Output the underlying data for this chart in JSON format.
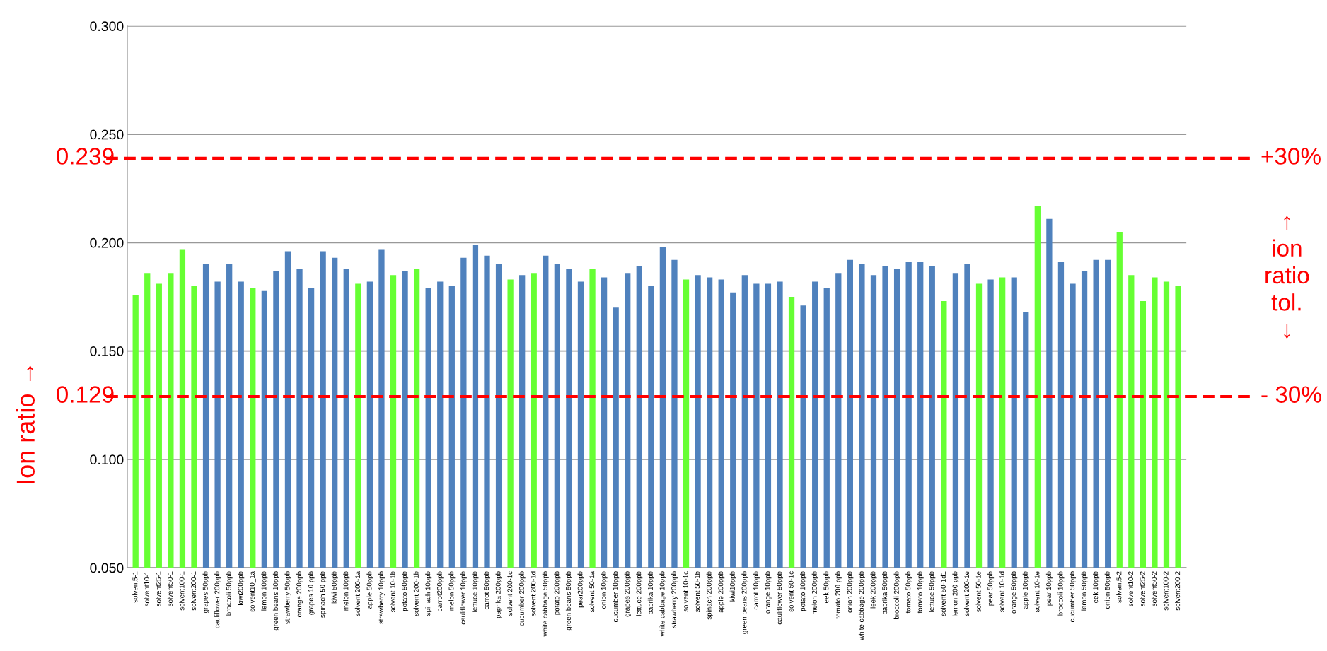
{
  "chart_data": {
    "type": "bar",
    "ylabel": "Ion ratio →",
    "categories": [
      "solvent5-1",
      "solvent10-1",
      "solvent25-1",
      "solvent50-1",
      "solvent100-1",
      "solvent200-1",
      "grapes 50ppb",
      "cauliflower 200ppb",
      "broccoli 50ppb",
      "kiwi200ppb",
      "solvent10_1a",
      "lemon 10ppb",
      "green beans 10ppb",
      "strawberry 50ppb",
      "orange 200ppb",
      "grapes 10 ppb",
      "spinach 50 ppb",
      "kiwi 50ppb",
      "melon 10ppb",
      "solvent 200-1a",
      "apple 50ppb",
      "strawberry 10ppb",
      "solvent 10-1b",
      "potato 50ppb",
      "solvent 200-1b",
      "spinach 10ppb",
      "carrot200ppb",
      "melon 50ppb",
      "cauliflower 10ppb",
      "lettuce 10ppb",
      "carrot 50ppb",
      "paprika 200ppb",
      "solvent 200-1c",
      "cucumber 200ppb",
      "solvent 200-1d",
      "white cabbage 50ppb",
      "potato 200ppb",
      "green beans 50ppb",
      "pear200ppb",
      "solvent 50-1a",
      "onion 10ppb",
      "cucumber 10ppb",
      "grapes 200ppb",
      "lettuce 200ppb",
      "paprika 10ppb",
      "white cabbage 10ppb",
      "strawberry 200ppb",
      "solvent 10-1c",
      "solvent 50-1b",
      "spinach 200ppb",
      "apple 200ppb",
      "kiwi10ppb",
      "green beans 200ppb",
      "carrot 10ppb",
      "orange 10ppb",
      "cauliflower 50ppb",
      "solvent 50-1c",
      "potato 10ppb",
      "melon 200ppb",
      "leek 50ppb",
      "tomato 200 ppb",
      "onion 200ppb",
      "white cabbage 200ppb",
      "leek 200ppb",
      "paprika 50ppb",
      "broccoli 200ppb",
      "tomato 50ppb",
      "tomato 10ppb",
      "lettuce 50ppb",
      "solvent 50-1d1",
      "lemon 200 ppb",
      "solvent 200-1e",
      "solvent 50-1e",
      "pear 50ppb",
      "solvent 10-1d",
      "orange 50ppb",
      "apple 10ppb",
      "solvent 10-1e",
      "pear 10ppb",
      "broccoli 10ppb",
      "cucumber 50ppb",
      "lemon 50ppb",
      "leek 10ppb",
      "onion 50ppb",
      "solvent5-2",
      "solvent10-2",
      "solvent25-2",
      "solvent50-2",
      "solvent100-2",
      "solvent200-2"
    ],
    "values": [
      0.176,
      0.186,
      0.181,
      0.186,
      0.197,
      0.18,
      0.19,
      0.182,
      0.19,
      0.182,
      0.179,
      0.178,
      0.187,
      0.196,
      0.188,
      0.179,
      0.196,
      0.193,
      0.188,
      0.181,
      0.182,
      0.197,
      0.185,
      0.187,
      0.188,
      0.179,
      0.182,
      0.18,
      0.193,
      0.199,
      0.194,
      0.19,
      0.183,
      0.185,
      0.186,
      0.194,
      0.19,
      0.188,
      0.182,
      0.188,
      0.184,
      0.17,
      0.186,
      0.189,
      0.18,
      0.198,
      0.192,
      0.183,
      0.185,
      0.184,
      0.183,
      0.177,
      0.185,
      0.181,
      0.181,
      0.182,
      0.175,
      0.171,
      0.182,
      0.179,
      0.186,
      0.192,
      0.19,
      0.185,
      0.189,
      0.188,
      0.191,
      0.191,
      0.189,
      0.173,
      0.186,
      0.19,
      0.181,
      0.183,
      0.184,
      0.184,
      0.168,
      0.217,
      0.211,
      0.191,
      0.181,
      0.187,
      0.192,
      0.192,
      0.205,
      0.185,
      0.173,
      0.184,
      0.182,
      0.18
    ],
    "colors": [
      "#66ff33",
      "#66ff33",
      "#66ff33",
      "#66ff33",
      "#66ff33",
      "#66ff33",
      "#4f81bd",
      "#4f81bd",
      "#4f81bd",
      "#4f81bd",
      "#66ff33",
      "#4f81bd",
      "#4f81bd",
      "#4f81bd",
      "#4f81bd",
      "#4f81bd",
      "#4f81bd",
      "#4f81bd",
      "#4f81bd",
      "#66ff33",
      "#4f81bd",
      "#4f81bd",
      "#66ff33",
      "#4f81bd",
      "#66ff33",
      "#4f81bd",
      "#4f81bd",
      "#4f81bd",
      "#4f81bd",
      "#4f81bd",
      "#4f81bd",
      "#4f81bd",
      "#66ff33",
      "#4f81bd",
      "#66ff33",
      "#4f81bd",
      "#4f81bd",
      "#4f81bd",
      "#4f81bd",
      "#66ff33",
      "#4f81bd",
      "#4f81bd",
      "#4f81bd",
      "#4f81bd",
      "#4f81bd",
      "#4f81bd",
      "#4f81bd",
      "#66ff33",
      "#4f81bd",
      "#4f81bd",
      "#4f81bd",
      "#4f81bd",
      "#4f81bd",
      "#4f81bd",
      "#4f81bd",
      "#4f81bd",
      "#66ff33",
      "#4f81bd",
      "#4f81bd",
      "#4f81bd",
      "#4f81bd",
      "#4f81bd",
      "#4f81bd",
      "#4f81bd",
      "#4f81bd",
      "#4f81bd",
      "#4f81bd",
      "#4f81bd",
      "#4f81bd",
      "#66ff33",
      "#4f81bd",
      "#4f81bd",
      "#66ff33",
      "#4f81bd",
      "#66ff33",
      "#4f81bd",
      "#4f81bd",
      "#66ff33",
      "#4f81bd",
      "#4f81bd",
      "#4f81bd",
      "#4f81bd",
      "#4f81bd",
      "#4f81bd",
      "#66ff33",
      "#66ff33",
      "#66ff33",
      "#66ff33",
      "#66ff33",
      "#66ff33"
    ],
    "ylim": [
      0.05,
      0.3
    ],
    "yticks": [
      {
        "value": 0.05,
        "label": "0.050"
      },
      {
        "value": 0.1,
        "label": "0.100"
      },
      {
        "value": 0.15,
        "label": "0.150"
      },
      {
        "value": 0.2,
        "label": "0.200"
      },
      {
        "value": 0.25,
        "label": "0.250"
      },
      {
        "value": 0.3,
        "label": "0.300"
      }
    ],
    "grid": "y",
    "ref_lines": [
      {
        "axis": "y",
        "value": 0.239,
        "label": "0.239",
        "color": "#ff0000",
        "line_style": "dashed"
      },
      {
        "axis": "y",
        "value": 0.129,
        "label": "0.129",
        "color": "#ff0000",
        "line_style": "dashed"
      }
    ],
    "annotations": [
      "+30%",
      "- 30%",
      "↑\nion\nratio\ntol.\n↓"
    ]
  }
}
